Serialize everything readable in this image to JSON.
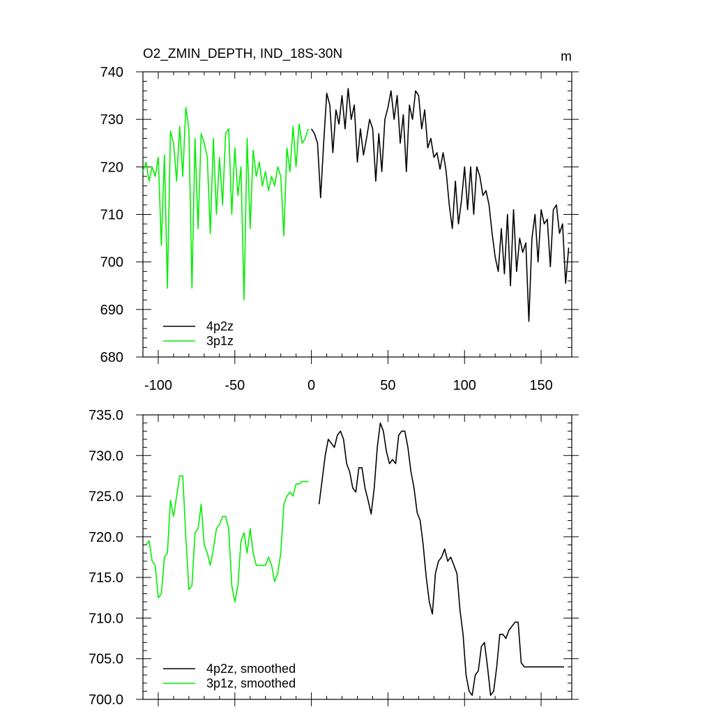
{
  "chart_data": [
    {
      "type": "line",
      "title": "O2_ZMIN_DEPTH, IND_18S-30N",
      "units_label": "m",
      "xlim": [
        -110,
        170
      ],
      "ylim": [
        680,
        740
      ],
      "xticks": [
        -100,
        -50,
        0,
        50,
        100,
        150
      ],
      "xtick_labels": [
        "-100",
        "-50",
        "0",
        "50",
        "100",
        "150"
      ],
      "yticks": [
        680,
        690,
        700,
        710,
        720,
        730,
        740
      ],
      "ytick_labels": [
        "680",
        "690",
        "700",
        "710",
        "720",
        "730",
        "740"
      ],
      "legend_position": "bottom-left",
      "series": [
        {
          "name": "4p2z",
          "color": "#000000",
          "x": [
            0,
            2,
            4,
            6,
            8,
            10,
            12,
            14,
            16,
            18,
            20,
            22,
            24,
            26,
            28,
            30,
            32,
            34,
            36,
            38,
            40,
            42,
            44,
            46,
            48,
            50,
            52,
            54,
            56,
            58,
            60,
            62,
            64,
            66,
            68,
            70,
            72,
            74,
            76,
            78,
            80,
            82,
            84,
            86,
            88,
            90,
            92,
            94,
            96,
            98,
            100,
            102,
            104,
            106,
            108,
            110,
            112,
            114,
            116,
            118,
            120,
            122,
            124,
            126,
            128,
            130,
            132,
            134,
            136,
            138,
            140,
            142,
            144,
            146,
            148,
            150,
            152,
            154,
            156,
            158,
            160,
            162,
            164,
            166,
            168
          ],
          "y": [
            728,
            727,
            725,
            713.5,
            725,
            735.5,
            733,
            723,
            732,
            729,
            735,
            728,
            736.5,
            730,
            733,
            721,
            728,
            722.5,
            726,
            730,
            728,
            717,
            727,
            719,
            730,
            732.5,
            736,
            730,
            735,
            725,
            731,
            719,
            733,
            730,
            736,
            735,
            728,
            732,
            724,
            726,
            722,
            723,
            719.5,
            723,
            719,
            712,
            707,
            717,
            708,
            713,
            720,
            711,
            720,
            710,
            720,
            718,
            714,
            715,
            712,
            706,
            701,
            698,
            707,
            697.5,
            710,
            695,
            711,
            698,
            705,
            702,
            704,
            687.5,
            705,
            710,
            700,
            711,
            708,
            709,
            699,
            711,
            712,
            706,
            708,
            695.5,
            703
          ]
        },
        {
          "name": "3p1z",
          "color": "#00ee00",
          "x": [
            -110,
            -108,
            -106,
            -104,
            -102,
            -100,
            -98,
            -96,
            -94,
            -92,
            -90,
            -88,
            -86,
            -84,
            -82,
            -80,
            -78,
            -76,
            -74,
            -72,
            -70,
            -68,
            -66,
            -64,
            -62,
            -60,
            -58,
            -56,
            -54,
            -52,
            -50,
            -48,
            -46,
            -44,
            -42,
            -40,
            -38,
            -36,
            -34,
            -32,
            -30,
            -28,
            -26,
            -24,
            -22,
            -20,
            -18,
            -16,
            -14,
            -12,
            -10,
            -8,
            -6,
            -4,
            -2
          ],
          "y": [
            719,
            721,
            717,
            720,
            718,
            722,
            703.5,
            722.5,
            694.5,
            727.5,
            725,
            717,
            728.5,
            718,
            732.5,
            728,
            694.5,
            726,
            707,
            727,
            725,
            722,
            706,
            726,
            710,
            722,
            712,
            727,
            728,
            710,
            724,
            714,
            720,
            692,
            726,
            707,
            723.5,
            718,
            721,
            716,
            719,
            715,
            718,
            716,
            720,
            718,
            705.5,
            724,
            719,
            728.5,
            720,
            729,
            725,
            726,
            728
          ]
        }
      ]
    },
    {
      "type": "line",
      "title": "",
      "xlim": [
        -110,
        170
      ],
      "ylim": [
        700,
        735
      ],
      "xticks": [
        -100,
        -50,
        0,
        50,
        100,
        150
      ],
      "yticks": [
        700,
        705,
        710,
        715,
        720,
        725,
        730,
        735
      ],
      "ytick_labels": [
        "700.0",
        "705.0",
        "710.0",
        "715.0",
        "720.0",
        "725.0",
        "730.0",
        "735.0"
      ],
      "legend_position": "bottom-left",
      "series": [
        {
          "name": "4p2z, smoothed",
          "color": "#000000",
          "x": [
            5,
            7,
            9,
            11,
            13,
            15,
            17,
            19,
            21,
            23,
            25,
            27,
            29,
            31,
            33,
            35,
            37,
            39,
            41,
            43,
            45,
            47,
            49,
            51,
            53,
            55,
            57,
            59,
            61,
            63,
            65,
            67,
            69,
            71,
            73,
            75,
            77,
            79,
            81,
            83,
            85,
            87,
            89,
            91,
            93,
            95,
            97,
            99,
            101,
            103,
            105,
            107,
            109,
            111,
            113,
            115,
            117,
            119,
            121,
            123,
            125,
            127,
            129,
            131,
            133,
            135,
            137,
            139,
            141,
            143,
            145,
            147,
            149,
            151,
            153,
            155,
            157,
            159,
            161,
            163,
            165
          ],
          "y": [
            724,
            727,
            730,
            732,
            731.5,
            731,
            732.5,
            733,
            732,
            729,
            728,
            726,
            725.5,
            728.5,
            728.5,
            726,
            724.5,
            722.8,
            726,
            731,
            734,
            733,
            730.5,
            729,
            729.5,
            729,
            732.5,
            733,
            733,
            731,
            728,
            726,
            723,
            722,
            719,
            715,
            712,
            710.5,
            715.5,
            717,
            717.5,
            718.5,
            717,
            717.5,
            716.5,
            715.5,
            711,
            708,
            703,
            701,
            700.5,
            703,
            703.5,
            706.5,
            707,
            704,
            700.5,
            701,
            704,
            708,
            708,
            707.5,
            708.5,
            709,
            709.5,
            709.5,
            704.5,
            704,
            704,
            704,
            704,
            704,
            704,
            704,
            704,
            704,
            704,
            704,
            704,
            704,
            704
          ]
        },
        {
          "name": "3p1z, smoothed",
          "color": "#00ee00",
          "x": [
            -108,
            -106,
            -104,
            -102,
            -100,
            -98,
            -96,
            -94,
            -92,
            -90,
            -88,
            -86,
            -84,
            -82,
            -80,
            -78,
            -76,
            -74,
            -72,
            -70,
            -68,
            -66,
            -64,
            -62,
            -60,
            -58,
            -56,
            -54,
            -52,
            -50,
            -48,
            -46,
            -44,
            -42,
            -40,
            -38,
            -36,
            -34,
            -32,
            -30,
            -28,
            -26,
            -24,
            -22,
            -20,
            -18,
            -16,
            -14,
            -12,
            -10,
            -8,
            -6,
            -4,
            -2
          ],
          "y": [
            719,
            719.5,
            717,
            716.5,
            712.5,
            713,
            717.5,
            718,
            724.5,
            722.5,
            725,
            727.5,
            727.5,
            720,
            713.5,
            714,
            720.5,
            721,
            724,
            719,
            718,
            716.5,
            718.5,
            721,
            721.5,
            722.5,
            722.5,
            721,
            714,
            712,
            714,
            719.5,
            720.5,
            718,
            721,
            718,
            716.5,
            716.5,
            716.5,
            716.5,
            717.5,
            716.5,
            714.5,
            715.5,
            718,
            724,
            725,
            725.5,
            725,
            726.5,
            726.5,
            726.8,
            726.8,
            726.8
          ]
        }
      ]
    }
  ]
}
